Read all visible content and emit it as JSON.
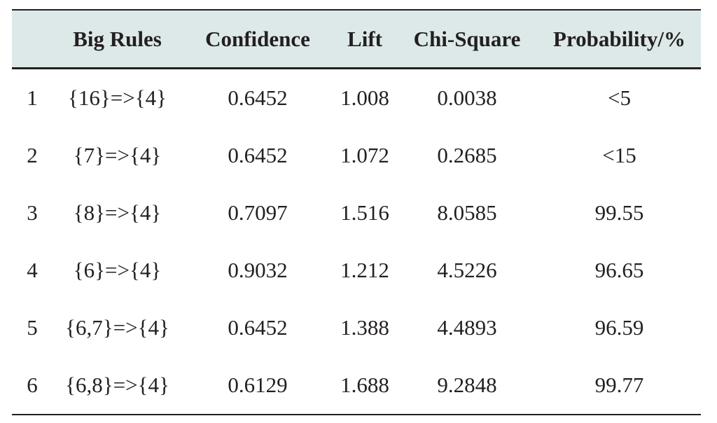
{
  "table": {
    "headers": [
      "",
      "Big Rules",
      "Confidence",
      "Lift",
      "Chi-Square",
      "Probability/%"
    ],
    "rows": [
      [
        "1",
        "{16}=>{4}",
        "0.6452",
        "1.008",
        "0.0038",
        "<5"
      ],
      [
        "2",
        "{7}=>{4}",
        "0.6452",
        "1.072",
        "0.2685",
        "<15"
      ],
      [
        "3",
        "{8}=>{4}",
        "0.7097",
        "1.516",
        "8.0585",
        "99.55"
      ],
      [
        "4",
        "{6}=>{4}",
        "0.9032",
        "1.212",
        "4.5226",
        "96.65"
      ],
      [
        "5",
        "{6,7}=>{4}",
        "0.6452",
        "1.388",
        "4.4893",
        "96.59"
      ],
      [
        "6",
        "{6,8}=>{4}",
        "0.6129",
        "1.688",
        "9.2848",
        "99.77"
      ]
    ],
    "colors": {
      "header_bg": "#dce9e8",
      "text": "#231f20",
      "rule": "#231f20"
    }
  }
}
